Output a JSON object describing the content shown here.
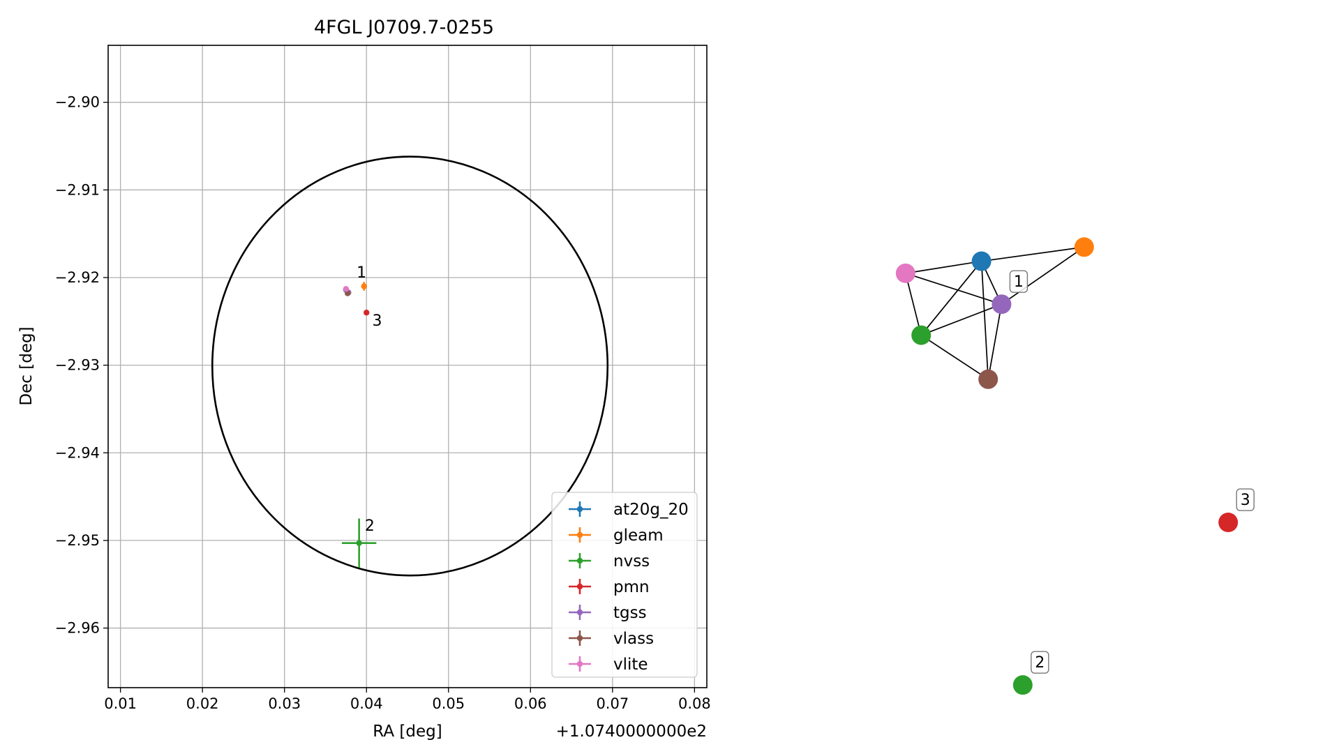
{
  "chart_data": [
    {
      "type": "scatter",
      "title": "4FGL J0709.7-0255",
      "xlabel": "RA [deg]",
      "ylabel": "Dec [deg]",
      "offset_label": "+1.0740000000e2",
      "xlim": [
        0.0085,
        0.0815
      ],
      "ylim": [
        -2.9668,
        -2.8935
      ],
      "xticks": [
        0.01,
        0.02,
        0.03,
        0.04,
        0.05,
        0.06,
        0.07,
        0.08
      ],
      "xtick_labels": [
        "0.01",
        "0.02",
        "0.03",
        "0.04",
        "0.05",
        "0.06",
        "0.07",
        "0.08"
      ],
      "yticks": [
        -2.9,
        -2.91,
        -2.92,
        -2.93,
        -2.94,
        -2.95,
        -2.96
      ],
      "ytick_labels": [
        "−2.90",
        "−2.91",
        "−2.92",
        "−2.93",
        "−2.94",
        "−2.95",
        "−2.96"
      ],
      "grid": true,
      "legend_position": "lower-right",
      "ellipse": {
        "center_x": 0.0453,
        "center_y": -2.9301,
        "semi_x": 0.0241,
        "semi_y": 0.0239
      },
      "series": [
        {
          "name": "at20g_20",
          "color": "#1f77b4",
          "x": 0.0375,
          "y": -2.9214,
          "xerr": 0.0003,
          "yerr": 0.0003
        },
        {
          "name": "gleam",
          "color": "#ff7f0e",
          "x": 0.0397,
          "y": -2.921,
          "xerr": 0.0003,
          "yerr": 0.0005
        },
        {
          "name": "nvss",
          "color": "#2ca02c",
          "x": 0.0391,
          "y": -2.9503,
          "xerr": 0.0021,
          "yerr": 0.0028
        },
        {
          "name": "pmn",
          "color": "#d62728",
          "x": 0.04,
          "y": -2.924,
          "xerr": 0.0002,
          "yerr": 0.0002
        },
        {
          "name": "tgss",
          "color": "#9467bd",
          "x": 0.0378,
          "y": -2.9217,
          "xerr": 0.0003,
          "yerr": 0.0003
        },
        {
          "name": "vlass",
          "color": "#8c564b",
          "x": 0.0377,
          "y": -2.9218,
          "xerr": 0.0002,
          "yerr": 0.0002
        },
        {
          "name": "vlite",
          "color": "#e377c2",
          "x": 0.0375,
          "y": -2.9213,
          "xerr": 0.0002,
          "yerr": 0.0002
        }
      ],
      "annotations": [
        {
          "text": "1",
          "x": 0.0388,
          "y": -2.92
        },
        {
          "text": "3",
          "x": 0.0407,
          "y": -2.9255
        },
        {
          "text": "2",
          "x": 0.0398,
          "y": -2.9489
        }
      ]
    },
    {
      "type": "network",
      "nodes": [
        {
          "id": "at20g_20",
          "color": "#1f77b4",
          "x": 0.372,
          "y": 0.845
        },
        {
          "id": "gleam",
          "color": "#ff7f0e",
          "x": 0.556,
          "y": 0.872
        },
        {
          "id": "nvss_group",
          "color": "#2ca02c",
          "x": 0.264,
          "y": 0.704
        },
        {
          "id": "tgss",
          "color": "#9467bd",
          "x": 0.408,
          "y": 0.763
        },
        {
          "id": "vlass",
          "color": "#8c564b",
          "x": 0.384,
          "y": 0.62
        },
        {
          "id": "vlite",
          "color": "#e377c2",
          "x": 0.236,
          "y": 0.822
        },
        {
          "id": "nvss",
          "color": "#2ca02c",
          "x": 0.446,
          "y": 0.037
        },
        {
          "id": "pmn",
          "color": "#d62728",
          "x": 0.814,
          "y": 0.347
        }
      ],
      "edges": [
        [
          "at20g_20",
          "gleam"
        ],
        [
          "at20g_20",
          "vlite"
        ],
        [
          "at20g_20",
          "nvss_group"
        ],
        [
          "at20g_20",
          "tgss"
        ],
        [
          "at20g_20",
          "vlass"
        ],
        [
          "gleam",
          "tgss"
        ],
        [
          "vlite",
          "tgss"
        ],
        [
          "vlite",
          "nvss_group"
        ],
        [
          "nvss_group",
          "tgss"
        ],
        [
          "nvss_group",
          "vlass"
        ],
        [
          "tgss",
          "vlass"
        ]
      ],
      "labels": [
        {
          "text": "1",
          "node": "tgss"
        },
        {
          "text": "2",
          "node": "nvss"
        },
        {
          "text": "3",
          "node": "pmn"
        }
      ]
    }
  ]
}
